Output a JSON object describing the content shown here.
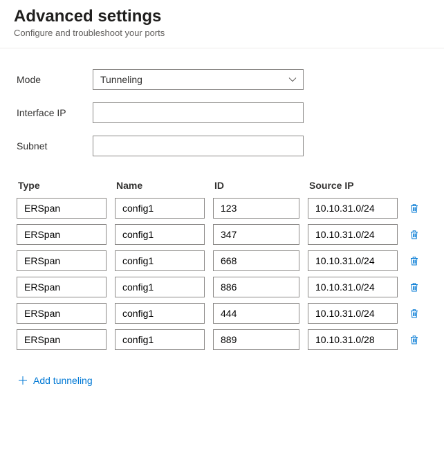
{
  "header": {
    "title": "Advanced settings",
    "subtitle": "Configure and troubleshoot your ports"
  },
  "form": {
    "mode_label": "Mode",
    "mode_value": "Tunneling",
    "interface_ip_label": "Interface IP",
    "interface_ip_value": "",
    "subnet_label": "Subnet",
    "subnet_value": ""
  },
  "table": {
    "columns": {
      "type": "Type",
      "name": "Name",
      "id": "ID",
      "source_ip": "Source IP"
    },
    "rows": [
      {
        "type": "ERSpan",
        "name": "config1",
        "id": "123",
        "source_ip": "10.10.31.0/24"
      },
      {
        "type": "ERSpan",
        "name": "config1",
        "id": "347",
        "source_ip": "10.10.31.0/24"
      },
      {
        "type": "ERSpan",
        "name": "config1",
        "id": "668",
        "source_ip": "10.10.31.0/24"
      },
      {
        "type": "ERSpan",
        "name": "config1",
        "id": "886",
        "source_ip": "10.10.31.0/24"
      },
      {
        "type": "ERSpan",
        "name": "config1",
        "id": "444",
        "source_ip": "10.10.31.0/24"
      },
      {
        "type": "ERSpan",
        "name": "config1",
        "id": "889",
        "source_ip": "10.10.31.0/28"
      }
    ]
  },
  "actions": {
    "add_label": "Add tunneling"
  },
  "colors": {
    "accent": "#0078d4",
    "border": "#8a8886",
    "divider": "#edebe9",
    "text_primary": "#323130",
    "text_secondary": "#605e5c",
    "background": "#ffffff"
  }
}
